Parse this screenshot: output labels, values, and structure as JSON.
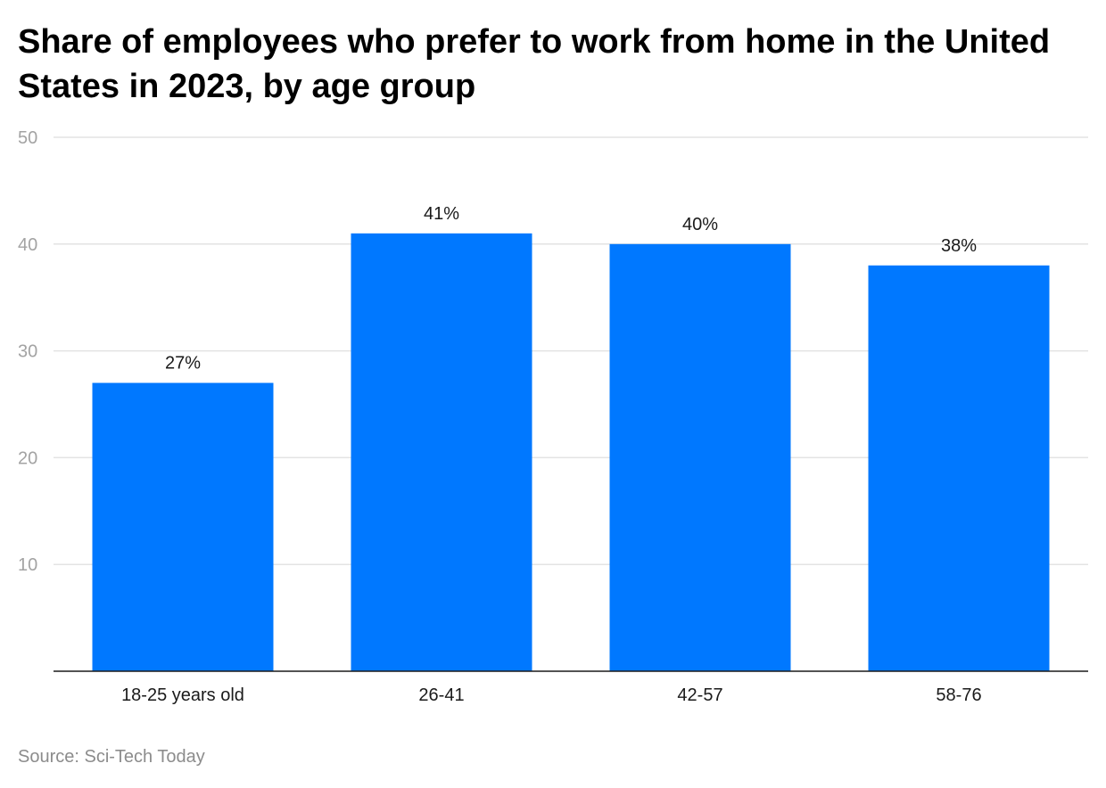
{
  "chart_data": {
    "type": "bar",
    "title": "Share of employees who prefer to work from home in the United States in 2023, by age group",
    "categories": [
      "18-25 years old",
      "26-41",
      "42-57",
      "58-76"
    ],
    "values": [
      27,
      41,
      40,
      38
    ],
    "data_labels": [
      "27%",
      "41%",
      "40%",
      "38%"
    ],
    "xlabel": "",
    "ylabel": "",
    "ylim": [
      0,
      50
    ],
    "yticks": [
      10,
      20,
      30,
      40,
      50
    ],
    "ytick_labels": [
      "10",
      "20",
      "30",
      "40",
      "50"
    ],
    "grid": true,
    "bar_color": "#0078ff",
    "source": "Source: Sci-Tech Today"
  }
}
